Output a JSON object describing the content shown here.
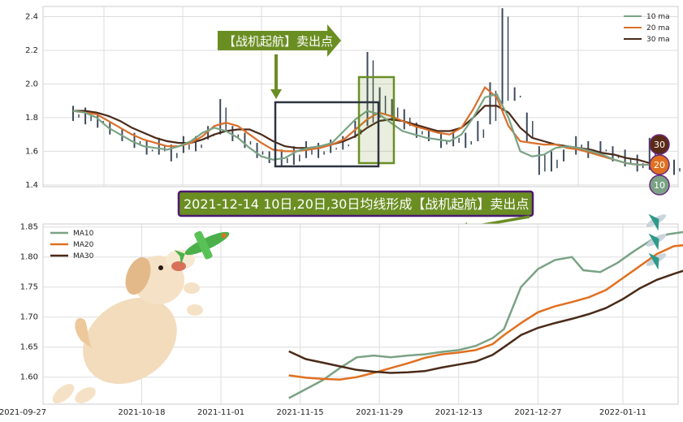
{
  "chart_data": [
    {
      "type": "line",
      "ylim": [
        1.39,
        2.46
      ],
      "y_ticks": [
        "1.4",
        "1.6",
        "1.8",
        "2.0",
        "2.2",
        "2.4"
      ],
      "grid": true,
      "legend": {
        "position": "top-right",
        "entries": [
          "10 ma",
          "20 ma",
          "30 ma"
        ]
      },
      "series": [
        {
          "name": "10 ma",
          "color": "#7aa385",
          "values": [
            1.84,
            1.83,
            1.8,
            1.74,
            1.7,
            1.66,
            1.63,
            1.62,
            1.61,
            1.63,
            1.66,
            1.71,
            1.74,
            1.72,
            1.68,
            1.62,
            1.57,
            1.55,
            1.56,
            1.6,
            1.62,
            1.63,
            1.65,
            1.72,
            1.79,
            1.84,
            1.82,
            1.77,
            1.72,
            1.7,
            1.68,
            1.67,
            1.66,
            1.7,
            1.8,
            1.92,
            1.94,
            1.8,
            1.6,
            1.57,
            1.58,
            1.62,
            1.63,
            1.62,
            1.6,
            1.58,
            1.55,
            1.53,
            1.52,
            1.52
          ]
        },
        {
          "name": "20 ma",
          "color": "#d96f2a",
          "values": [
            1.84,
            1.83,
            1.82,
            1.78,
            1.74,
            1.7,
            1.67,
            1.65,
            1.63,
            1.63,
            1.65,
            1.69,
            1.75,
            1.77,
            1.75,
            1.7,
            1.65,
            1.61,
            1.6,
            1.6,
            1.61,
            1.62,
            1.64,
            1.67,
            1.73,
            1.79,
            1.83,
            1.81,
            1.78,
            1.75,
            1.73,
            1.71,
            1.7,
            1.74,
            1.85,
            1.98,
            1.92,
            1.75,
            1.66,
            1.65,
            1.64,
            1.64,
            1.62,
            1.61,
            1.59,
            1.57,
            1.55,
            1.53,
            1.52,
            1.52
          ]
        },
        {
          "name": "30 ma",
          "color": "#4a2a1a",
          "values": [
            1.84,
            1.84,
            1.83,
            1.81,
            1.78,
            1.74,
            1.71,
            1.68,
            1.66,
            1.65,
            1.65,
            1.67,
            1.7,
            1.72,
            1.73,
            1.73,
            1.7,
            1.66,
            1.63,
            1.62,
            1.62,
            1.63,
            1.64,
            1.66,
            1.69,
            1.74,
            1.78,
            1.79,
            1.78,
            1.76,
            1.74,
            1.72,
            1.72,
            1.74,
            1.8,
            1.87,
            1.87,
            1.83,
            1.74,
            1.68,
            1.66,
            1.64,
            1.63,
            1.62,
            1.61,
            1.59,
            1.58,
            1.56,
            1.55,
            1.53
          ]
        }
      ],
      "price_bars": {
        "color": "#3d4a5c",
        "values": [
          1.82,
          1.8,
          1.78,
          1.74,
          1.7,
          1.68,
          1.62,
          1.65,
          1.58,
          1.66,
          1.64,
          1.72,
          1.88,
          1.7,
          1.66,
          1.6,
          1.57,
          1.58,
          1.6,
          1.63,
          1.6,
          1.64,
          1.66,
          1.75,
          2.16,
          1.95,
          1.88,
          1.82,
          1.74,
          1.7,
          1.66,
          1.7,
          1.68,
          1.75,
          1.98,
          2.42,
          1.95,
          1.7,
          1.5,
          1.52,
          1.58,
          1.66,
          1.6,
          1.63,
          1.58,
          1.55,
          1.52,
          1.65,
          1.54,
          1.5
        ]
      },
      "badges": [
        "30",
        "20",
        "10"
      ]
    },
    {
      "type": "line",
      "x_ticks": [
        "2021-09-27",
        "2021-10-18",
        "2021-11-01",
        "2021-11-15",
        "2021-11-29",
        "2021-12-13",
        "2021-12-27",
        "2022-01-11"
      ],
      "ylim": [
        1.555,
        1.855
      ],
      "y_ticks": [
        "1.60",
        "1.65",
        "1.70",
        "1.75",
        "1.80",
        "1.85"
      ],
      "grid": true,
      "legend": {
        "position": "top-left",
        "entries": [
          "MA10",
          "MA20",
          "MA30"
        ]
      },
      "series": [
        {
          "name": "MA10",
          "color": "#7aa385",
          "x": [
            "2021-11-13",
            "2021-11-16",
            "2021-11-19",
            "2021-11-22",
            "2021-11-25",
            "2021-11-28",
            "2021-12-01",
            "2021-12-04",
            "2021-12-07",
            "2021-12-10",
            "2021-12-13",
            "2021-12-16",
            "2021-12-19",
            "2021-12-21",
            "2021-12-24",
            "2021-12-27",
            "2021-12-30",
            "2022-01-02",
            "2022-01-04",
            "2022-01-07",
            "2022-01-10",
            "2022-01-13",
            "2022-01-16",
            "2022-01-19",
            "2022-01-22"
          ],
          "values": [
            1.565,
            1.58,
            1.595,
            1.615,
            1.633,
            1.636,
            1.633,
            1.636,
            1.638,
            1.642,
            1.645,
            1.652,
            1.665,
            1.68,
            1.75,
            1.78,
            1.795,
            1.8,
            1.778,
            1.775,
            1.79,
            1.81,
            1.828,
            1.838,
            1.842
          ]
        },
        {
          "name": "MA20",
          "color": "#e07020",
          "x": [
            "2021-11-13",
            "2021-11-16",
            "2021-11-19",
            "2021-11-22",
            "2021-11-25",
            "2021-11-28",
            "2021-12-01",
            "2021-12-04",
            "2021-12-07",
            "2021-12-10",
            "2021-12-13",
            "2021-12-16",
            "2021-12-19",
            "2021-12-21",
            "2021-12-24",
            "2021-12-27",
            "2021-12-30",
            "2022-01-02",
            "2022-01-05",
            "2022-01-08",
            "2022-01-11",
            "2022-01-14",
            "2022-01-17",
            "2022-01-20",
            "2022-01-22"
          ],
          "values": [
            1.603,
            1.599,
            1.597,
            1.596,
            1.6,
            1.607,
            1.615,
            1.623,
            1.632,
            1.638,
            1.641,
            1.645,
            1.655,
            1.67,
            1.69,
            1.708,
            1.718,
            1.725,
            1.733,
            1.745,
            1.765,
            1.785,
            1.805,
            1.818,
            1.82
          ]
        },
        {
          "name": "MA30",
          "color": "#4a2a18",
          "x": [
            "2021-11-13",
            "2021-11-16",
            "2021-11-19",
            "2021-11-22",
            "2021-11-25",
            "2021-11-28",
            "2021-12-01",
            "2021-12-04",
            "2021-12-07",
            "2021-12-10",
            "2021-12-13",
            "2021-12-16",
            "2021-12-19",
            "2021-12-21",
            "2021-12-24",
            "2021-12-27",
            "2021-12-30",
            "2022-01-02",
            "2022-01-05",
            "2022-01-08",
            "2022-01-11",
            "2022-01-14",
            "2022-01-17",
            "2022-01-20",
            "2022-01-22"
          ],
          "values": [
            1.643,
            1.63,
            1.624,
            1.618,
            1.612,
            1.609,
            1.607,
            1.608,
            1.61,
            1.616,
            1.621,
            1.626,
            1.637,
            1.65,
            1.67,
            1.682,
            1.69,
            1.697,
            1.705,
            1.715,
            1.73,
            1.748,
            1.762,
            1.772,
            1.778
          ]
        }
      ]
    }
  ],
  "annotations": {
    "top_arrow_label": "【战机起航】卖出点",
    "banner": "2021-12-14 10日,20日,30日均线形成【战机起航】卖出点"
  },
  "colors": {
    "arrow_fill": "#6b8e23",
    "banner_fill": "#6b8e23",
    "banner_border": "#4b1a6e",
    "box_dark": "#2d3440",
    "box_green": "#6b8e23"
  }
}
